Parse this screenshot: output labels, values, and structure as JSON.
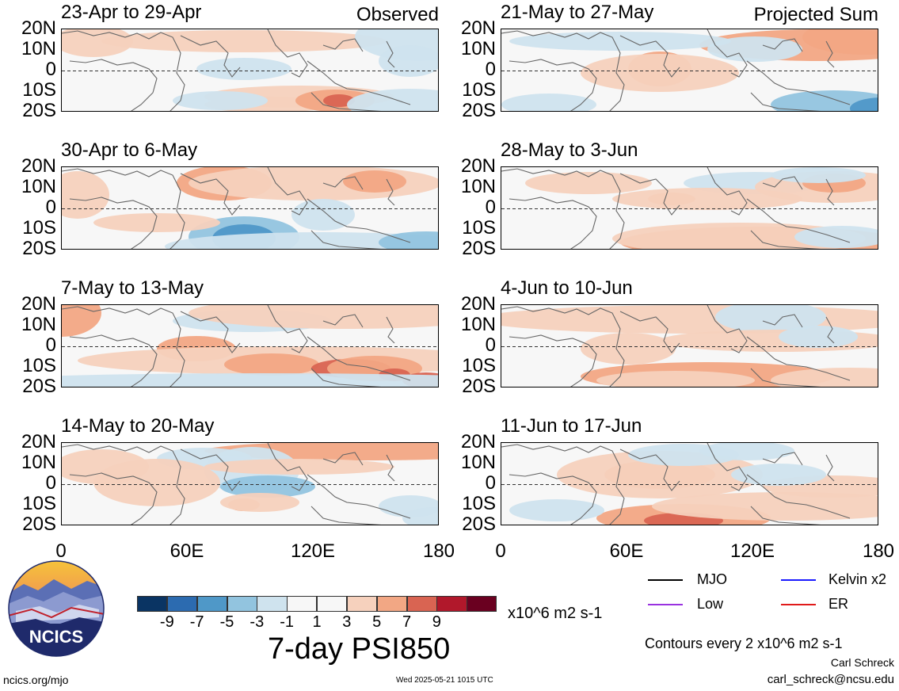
{
  "left_panels": [
    {
      "date_range": "23-Apr to 29-Apr",
      "tag": "Observed"
    },
    {
      "date_range": "30-Apr to 6-May",
      "tag": ""
    },
    {
      "date_range": "7-May to 13-May",
      "tag": ""
    },
    {
      "date_range": "14-May to 20-May",
      "tag": ""
    }
  ],
  "right_panels": [
    {
      "date_range": "21-May to 27-May",
      "tag": "Projected Sum"
    },
    {
      "date_range": "28-May to 3-Jun",
      "tag": ""
    },
    {
      "date_range": "4-Jun to 10-Jun",
      "tag": ""
    },
    {
      "date_range": "11-Jun to 17-Jun",
      "tag": ""
    }
  ],
  "lat_labels": [
    "20N",
    "10N",
    "0",
    "10S",
    "20S"
  ],
  "lon_labels": [
    "0",
    "60E",
    "120E",
    "180"
  ],
  "colorbar": {
    "colors": [
      "#0a3463",
      "#2c6bb0",
      "#4f98c8",
      "#92c4df",
      "#cfe3ee",
      "#f7f7f7",
      "#f7f7f7",
      "#f6d1bd",
      "#f2a784",
      "#d96452",
      "#b1182b",
      "#6a0020"
    ],
    "ticks": [
      "-9",
      "-7",
      "-5",
      "-3",
      "-1",
      "1",
      "3",
      "5",
      "7",
      "9"
    ],
    "units": "x10^6 m2 s-1"
  },
  "main_title": "7-day PSI850",
  "legend": [
    {
      "label": "MJO",
      "color": "#000000"
    },
    {
      "label": "Kelvin x2",
      "color": "#1a1aff"
    },
    {
      "label": "Low",
      "color": "#9a32e0"
    },
    {
      "label": "ER",
      "color": "#e01a1a"
    }
  ],
  "contour_note": "Contours every 2 x10^6 m2 s-1",
  "author": "Carl Schreck",
  "email": "carl_schreck@ncsu.edu",
  "url": "ncics.org/mjo",
  "timestamp": "Wed 2025-05-21 1015 UTC",
  "logo_text": "NCICS"
}
